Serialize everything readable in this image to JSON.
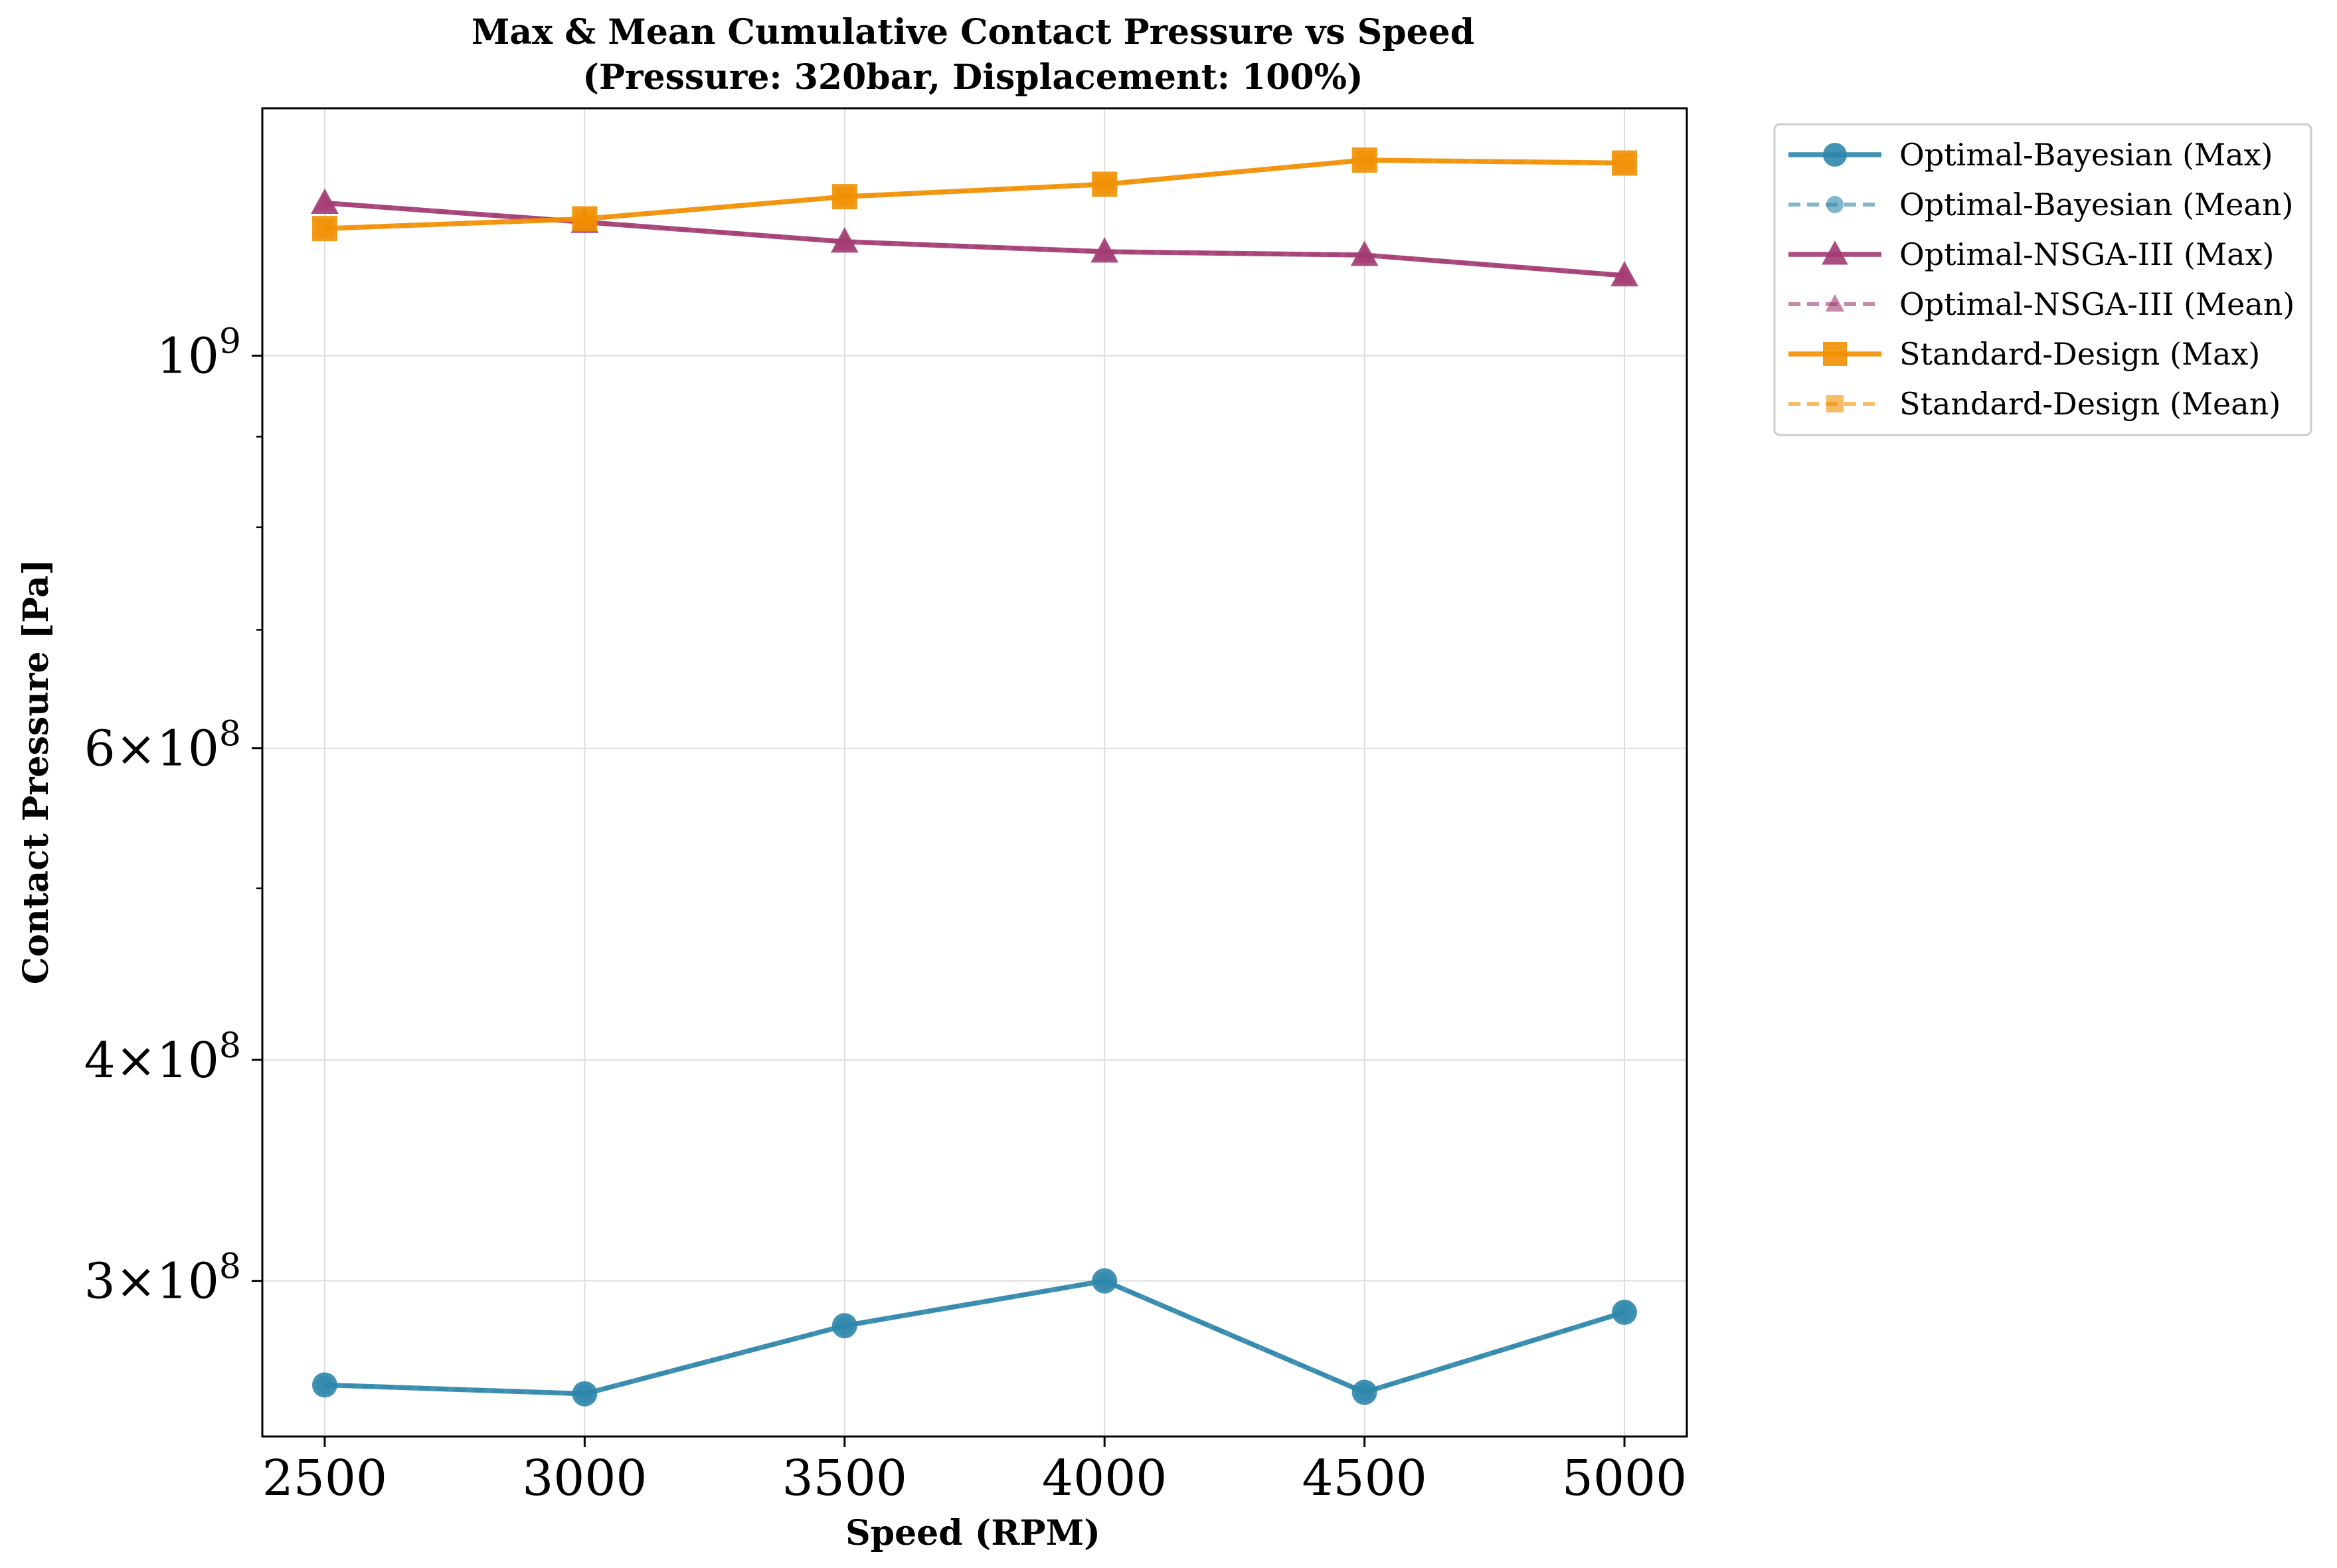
{
  "chart_data": {
    "type": "line",
    "title": "Max & Mean Cumulative Contact Pressure vs Speed",
    "subtitle": "(Pressure: 320bar, Displacement: 100%)",
    "xlabel": "Speed (RPM)",
    "ylabel": "Contact Pressure [Pa]",
    "yscale": "log",
    "x": [
      2500,
      3000,
      3500,
      4000,
      4500,
      5000
    ],
    "xlim": [
      2380,
      5120
    ],
    "ylim": [
      245000000,
      1380000000
    ],
    "x_ticks": [
      "2500",
      "3000",
      "3500",
      "4000",
      "4500",
      "5000"
    ],
    "y_ticks": [
      {
        "value": 300000000,
        "base": "3",
        "exp": "8",
        "prefix": "×10"
      },
      {
        "value": 400000000,
        "base": "4",
        "exp": "8",
        "prefix": "×10"
      },
      {
        "value": 600000000,
        "base": "6",
        "exp": "8",
        "prefix": "×10"
      },
      {
        "value": 1000000000,
        "base": "",
        "exp": "9",
        "prefix": "10"
      }
    ],
    "grid": true,
    "legend_position": "outside-right",
    "series": [
      {
        "name": "Optimal-Bayesian (Max)",
        "color": "#2E86AB",
        "marker": "circle",
        "dashed": false,
        "values": [
          262000000,
          259000000,
          283000000,
          300000000,
          259500000,
          288000000
        ]
      },
      {
        "name": "Optimal-Bayesian (Mean)",
        "color": "#2E86AB",
        "marker": "circle",
        "dashed": true,
        "values": [
          262000000,
          259000000,
          283000000,
          300000000,
          259500000,
          288000000
        ]
      },
      {
        "name": "Optimal-NSGA-III (Max)",
        "color": "#A23B72",
        "marker": "triangle",
        "dashed": false,
        "values": [
          1220000000,
          1190000000,
          1160000000,
          1145000000,
          1140000000,
          1110000000
        ]
      },
      {
        "name": "Optimal-NSGA-III (Mean)",
        "color": "#A23B72",
        "marker": "triangle",
        "dashed": true,
        "values": [
          1220000000,
          1190000000,
          1160000000,
          1145000000,
          1140000000,
          1110000000
        ]
      },
      {
        "name": "Standard-Design (Max)",
        "color": "#F18F01",
        "marker": "square",
        "dashed": false,
        "values": [
          1180000000,
          1195000000,
          1230000000,
          1250000000,
          1290000000,
          1285000000
        ]
      },
      {
        "name": "Standard-Design (Mean)",
        "color": "#F18F01",
        "marker": "square",
        "dashed": true,
        "values": [
          1180000000,
          1195000000,
          1230000000,
          1250000000,
          1290000000,
          1285000000
        ]
      }
    ]
  }
}
